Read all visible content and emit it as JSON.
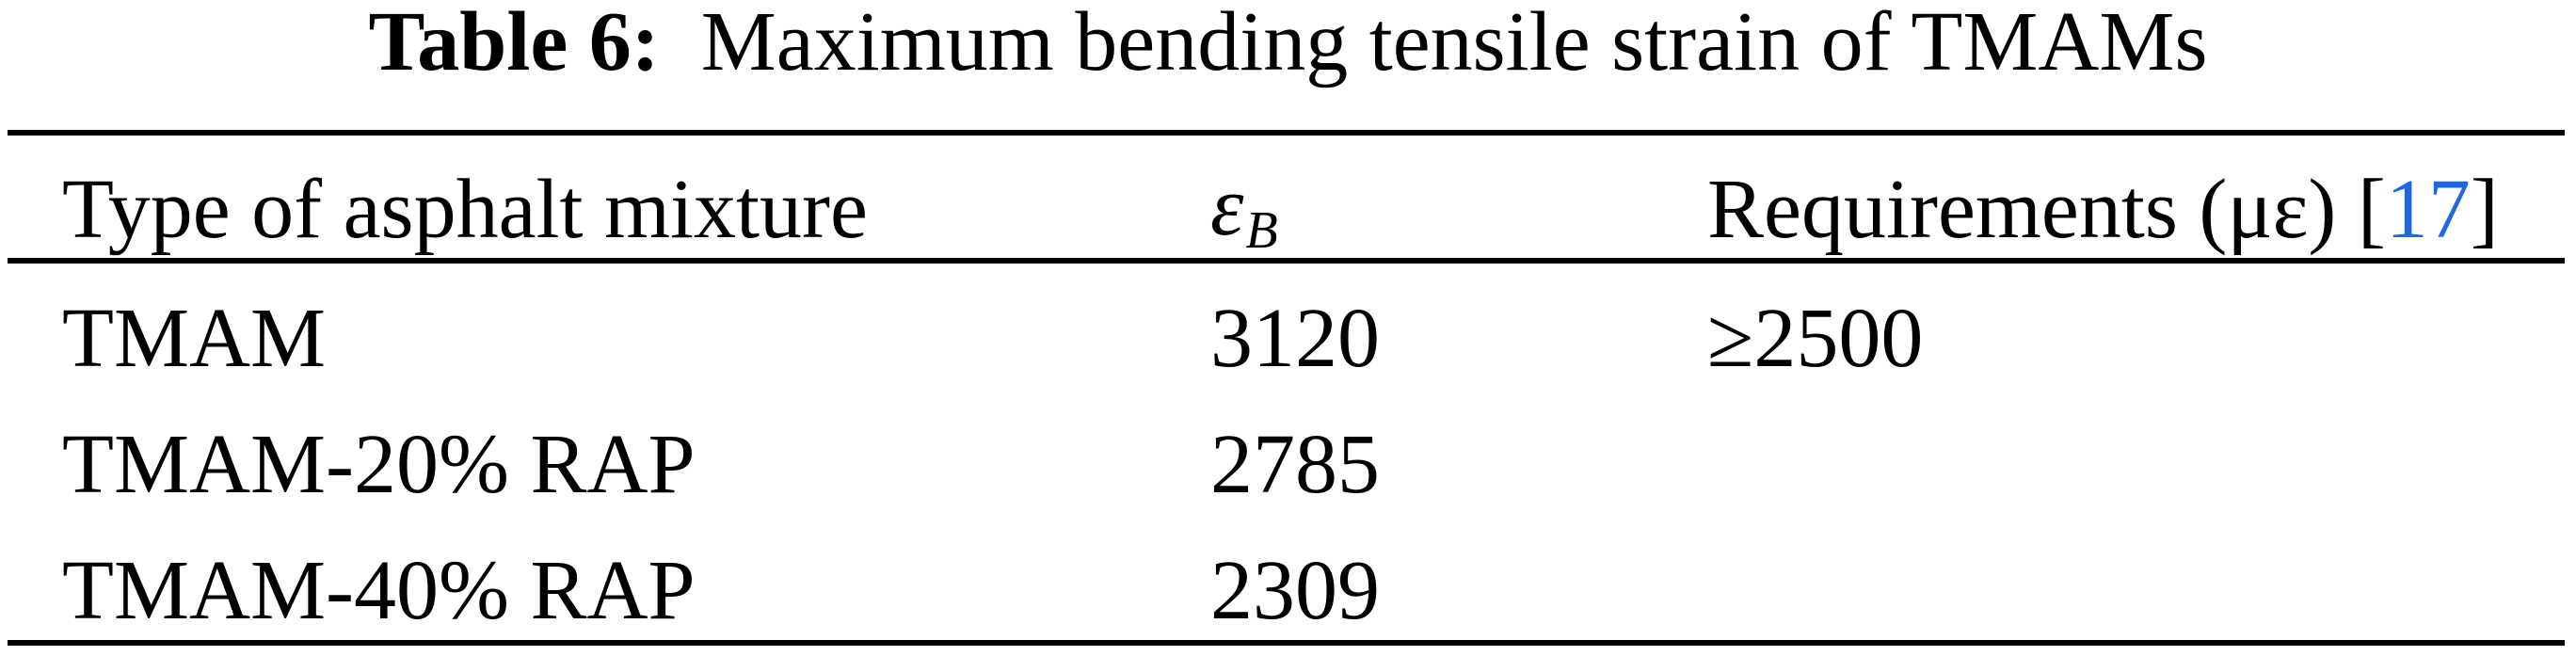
{
  "caption": {
    "label": "Table 6:",
    "text": "Maximum bending tensile strain of TMAMs"
  },
  "table": {
    "header": {
      "col1": "Type of asphalt mixture",
      "col2_symbol": "ε",
      "col2_subscript": "B",
      "col3_prefix": "Requirements (με) [",
      "col3_citation": "17",
      "col3_suffix": "]"
    },
    "rows": [
      {
        "mixture": "TMAM",
        "strain": "3120",
        "requirement": "≥2500"
      },
      {
        "mixture": "TMAM-20% RAP",
        "strain": "2785",
        "requirement": ""
      },
      {
        "mixture": "TMAM-40% RAP",
        "strain": "2309",
        "requirement": ""
      }
    ]
  },
  "colors": {
    "citation_link": "#1e69e1",
    "text": "#000000",
    "rule": "#000000"
  }
}
